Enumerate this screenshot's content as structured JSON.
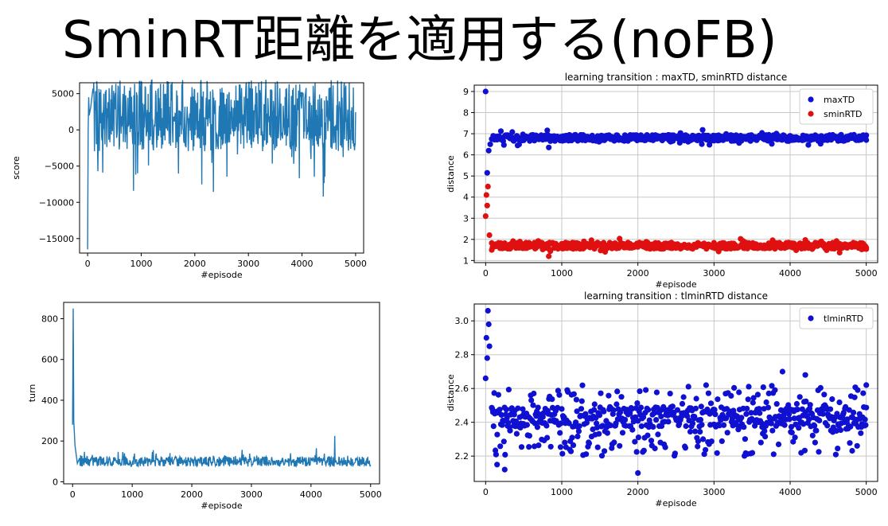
{
  "slide": {
    "title": "SminRT距離を適用する(noFB)"
  },
  "colors": {
    "line": "#1f77b4",
    "blue": "#1010d0",
    "red": "#e01010",
    "grid": "#c8c8c8"
  },
  "chart_data": [
    {
      "id": "score",
      "type": "line",
      "title": "",
      "xlabel": "#episode",
      "ylabel": "score",
      "xlim": [
        -150,
        5150
      ],
      "ylim": [
        -17000,
        6500
      ],
      "xticks": [
        0,
        1000,
        2000,
        3000,
        4000,
        5000
      ],
      "yticks": [
        -15000,
        -10000,
        -5000,
        0,
        5000
      ],
      "ytick_labels": [
        "−15000",
        "−10000",
        "−5000",
        "0",
        "5000"
      ],
      "grid": false,
      "series": [
        {
          "x": [
            0,
            10,
            20,
            30,
            60,
            100,
            500,
            1000,
            1500,
            2000,
            2500,
            3000,
            3500,
            4000,
            4380,
            4400,
            4450,
            4800,
            4950,
            5000
          ],
          "y": [
            -16500,
            0,
            4500,
            2000,
            3200,
            1500,
            2500,
            1000,
            3000,
            1500,
            2800,
            1800,
            2600,
            2200,
            2500,
            -9200,
            2000,
            1500,
            -2000,
            500
          ]
        }
      ],
      "noise_band": [
        -5000,
        6000
      ]
    },
    {
      "id": "turn",
      "type": "line",
      "title": "",
      "xlabel": "#episode",
      "ylabel": "turn",
      "xlim": [
        -150,
        5150
      ],
      "ylim": [
        -10,
        880
      ],
      "xticks": [
        0,
        1000,
        2000,
        3000,
        4000,
        5000
      ],
      "yticks": [
        0,
        200,
        400,
        600,
        800
      ],
      "grid": false,
      "series": [
        {
          "x": [
            0,
            10,
            20,
            40,
            80,
            500,
            1000,
            2000,
            3000,
            4000,
            4380,
            4400,
            4450,
            5000
          ],
          "y": [
            280,
            850,
            300,
            180,
            90,
            100,
            85,
            90,
            80,
            85,
            100,
            225,
            90,
            100
          ]
        }
      ],
      "noise_band": [
        40,
        180
      ]
    },
    {
      "id": "distance",
      "type": "scatter",
      "title": "learning transition : maxTD, sminRTD distance",
      "xlabel": "#episode",
      "ylabel": "distance",
      "xlim": [
        -150,
        5150
      ],
      "ylim": [
        0.9,
        9.3
      ],
      "xticks": [
        0,
        1000,
        2000,
        3000,
        4000,
        5000
      ],
      "yticks": [
        1,
        2,
        3,
        4,
        5,
        6,
        7,
        8,
        9
      ],
      "grid": true,
      "legend": "top-right",
      "series": [
        {
          "name": "maxTD",
          "color": "#1010d0",
          "x": [
            0,
            20,
            40,
            60,
            100,
            830,
            2000,
            3000,
            4000,
            5000
          ],
          "y": [
            9.0,
            5.15,
            6.2,
            6.5,
            6.9,
            6.35,
            6.9,
            6.9,
            6.9,
            6.7
          ],
          "band": [
            6.5,
            7.1
          ]
        },
        {
          "name": "sminRTD",
          "color": "#e01010",
          "x": [
            0,
            10,
            20,
            30,
            50,
            80,
            830,
            2000,
            3000,
            4000,
            5000
          ],
          "y": [
            3.1,
            4.1,
            3.6,
            4.5,
            2.2,
            1.5,
            1.2,
            1.8,
            1.8,
            1.8,
            1.6
          ],
          "band": [
            1.4,
            2.0
          ]
        }
      ]
    },
    {
      "id": "tlmin",
      "type": "scatter",
      "title": "learning transition : tlminRTD distance",
      "xlabel": "#episode",
      "ylabel": "distance",
      "xlim": [
        -150,
        5150
      ],
      "ylim": [
        2.05,
        3.1
      ],
      "xticks": [
        0,
        1000,
        2000,
        3000,
        4000,
        5000
      ],
      "yticks": [
        2.2,
        2.4,
        2.6,
        2.8,
        3.0
      ],
      "ytick_labels": [
        "2.2",
        "2.4",
        "2.6",
        "2.8",
        "3.0"
      ],
      "grid": true,
      "legend": "top-right",
      "series": [
        {
          "name": "tlminRTD",
          "color": "#1010d0",
          "x": [
            0,
            10,
            20,
            30,
            40,
            50,
            150,
            250,
            2000,
            3900,
            4200,
            5000
          ],
          "y": [
            2.66,
            2.9,
            2.78,
            3.06,
            2.98,
            2.85,
            2.15,
            2.12,
            2.1,
            2.7,
            2.68,
            2.62
          ],
          "band": [
            2.2,
            2.62
          ]
        }
      ]
    }
  ]
}
